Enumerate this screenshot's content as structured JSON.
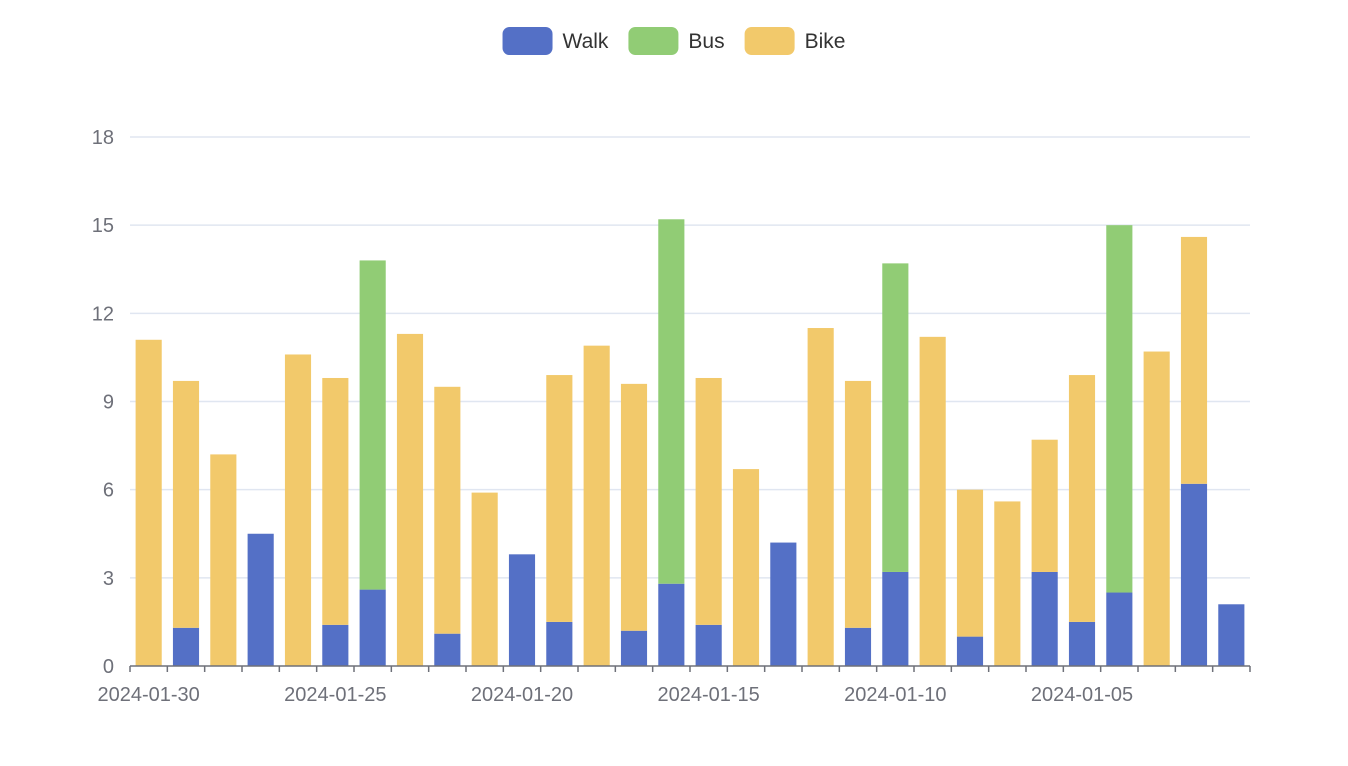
{
  "chart_data": {
    "type": "bar",
    "stacked": true,
    "x_axis_direction": "descending-dates",
    "categories": [
      "2024-01-30",
      "2024-01-29",
      "2024-01-28",
      "2024-01-27",
      "2024-01-26",
      "2024-01-25",
      "2024-01-24",
      "2024-01-23",
      "2024-01-22",
      "2024-01-21",
      "2024-01-20",
      "2024-01-19",
      "2024-01-18",
      "2024-01-17",
      "2024-01-16",
      "2024-01-15",
      "2024-01-14",
      "2024-01-13",
      "2024-01-12",
      "2024-01-11",
      "2024-01-10",
      "2024-01-09",
      "2024-01-08",
      "2024-01-07",
      "2024-01-06",
      "2024-01-05",
      "2024-01-04",
      "2024-01-03",
      "2024-01-02",
      "2024-01-01"
    ],
    "x_tick_labels": [
      "2024-01-30",
      "2024-01-25",
      "2024-01-20",
      "2024-01-15",
      "2024-01-10",
      "2024-01-05"
    ],
    "series": [
      {
        "name": "Walk",
        "color": "#5470c6",
        "values": [
          0,
          1.3,
          0,
          4.5,
          0,
          1.4,
          2.6,
          0,
          1.1,
          0,
          3.8,
          1.5,
          0,
          1.2,
          2.8,
          1.4,
          0,
          4.2,
          0,
          1.3,
          3.2,
          0,
          1.0,
          0,
          3.2,
          1.5,
          2.5,
          0,
          6.2,
          2.1
        ]
      },
      {
        "name": "Bus",
        "color": "#91cc75",
        "values": [
          0,
          0,
          0,
          0,
          0,
          0,
          11.2,
          0,
          0,
          0,
          0,
          0,
          0,
          0,
          12.4,
          0,
          0,
          0,
          0,
          0,
          10.5,
          0,
          0,
          0,
          0,
          0,
          12.5,
          0,
          0,
          0
        ]
      },
      {
        "name": "Bike",
        "color": "#f2c96b",
        "values": [
          11.1,
          8.4,
          7.2,
          0,
          10.6,
          8.4,
          0,
          11.3,
          8.4,
          5.9,
          0,
          8.4,
          10.9,
          8.4,
          0,
          8.4,
          6.7,
          0,
          11.5,
          8.4,
          0,
          11.2,
          5.0,
          5.6,
          4.5,
          8.4,
          0,
          10.7,
          8.4,
          0
        ]
      }
    ],
    "y_ticks": [
      0,
      3,
      6,
      9,
      12,
      15,
      18
    ],
    "ylim": [
      0,
      18
    ],
    "title": "",
    "xlabel": "",
    "ylabel": "",
    "grid": {
      "horizontal": true,
      "vertical": false
    },
    "legend_position": "top-center"
  }
}
